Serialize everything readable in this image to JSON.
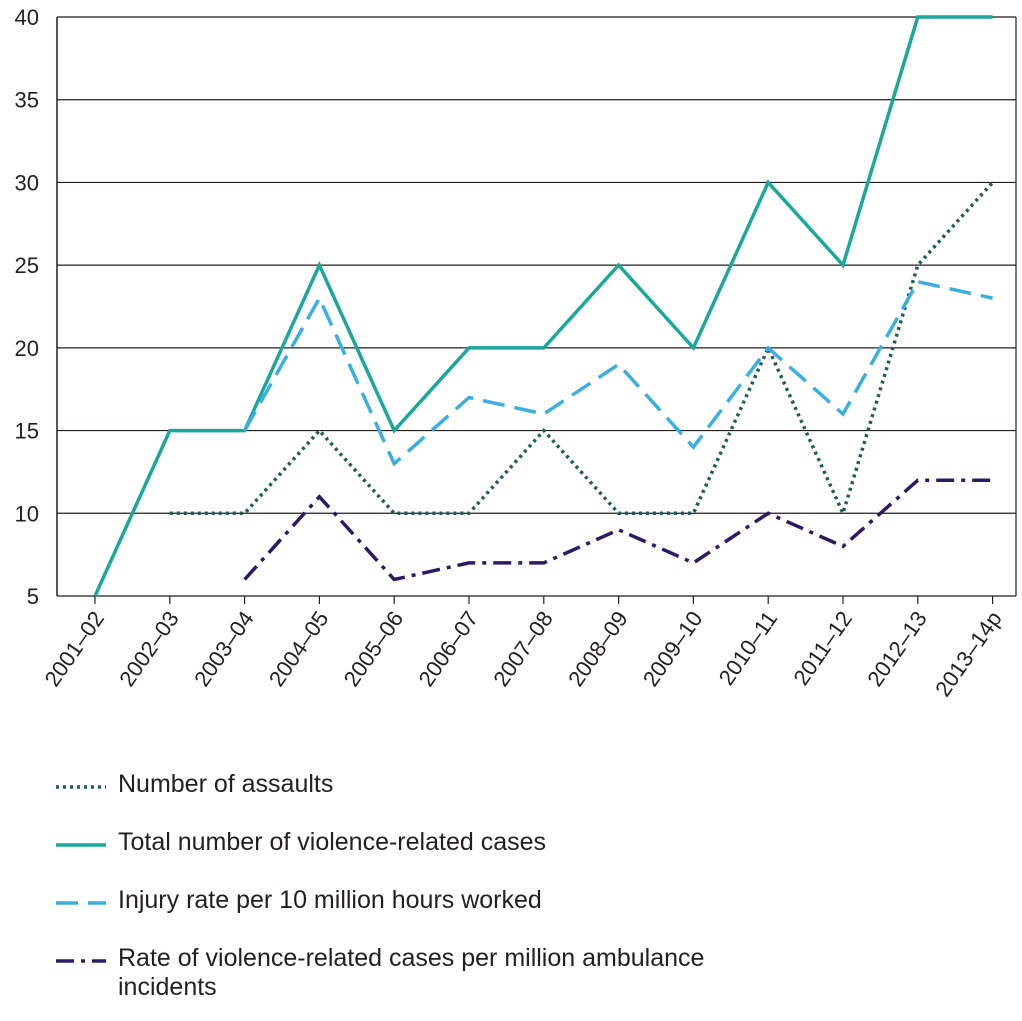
{
  "chart_data": {
    "type": "line",
    "categories": [
      "2001–02",
      "2002–03",
      "2003–04",
      "2004–05",
      "2005–06",
      "2006–07",
      "2007–08",
      "2008–09",
      "2009–10",
      "2010–11",
      "2011–12",
      "2012–13",
      "2013–14p"
    ],
    "ylim": [
      5,
      40
    ],
    "yticks": [
      5,
      10,
      15,
      20,
      25,
      30,
      35,
      40
    ],
    "grid": true,
    "legend_position": "bottom",
    "series": [
      {
        "name": "Number of assaults",
        "color": "#1f5c5a",
        "dash": "dotted",
        "values": [
          null,
          10,
          10,
          15,
          10,
          10,
          15,
          10,
          10,
          20,
          10,
          25,
          30
        ]
      },
      {
        "name": "Total number of violence-related cases",
        "color": "#1aa89a",
        "dash": "solid",
        "values": [
          5,
          15,
          15,
          25,
          15,
          20,
          20,
          25,
          20,
          30,
          25,
          40,
          40
        ]
      },
      {
        "name": "Injury rate per 10 million hours worked",
        "color": "#3ab0e2",
        "dash": "dashed",
        "values": [
          null,
          null,
          15,
          23,
          13,
          17,
          16,
          19,
          14,
          20,
          16,
          24,
          23
        ]
      },
      {
        "name": "Rate of violence-related cases per million ambulance incidents",
        "color": "#2e1a63",
        "dash": "dashdot",
        "values": [
          null,
          null,
          6,
          11,
          6,
          7,
          7,
          9,
          7,
          10,
          8,
          12,
          12
        ]
      }
    ]
  }
}
